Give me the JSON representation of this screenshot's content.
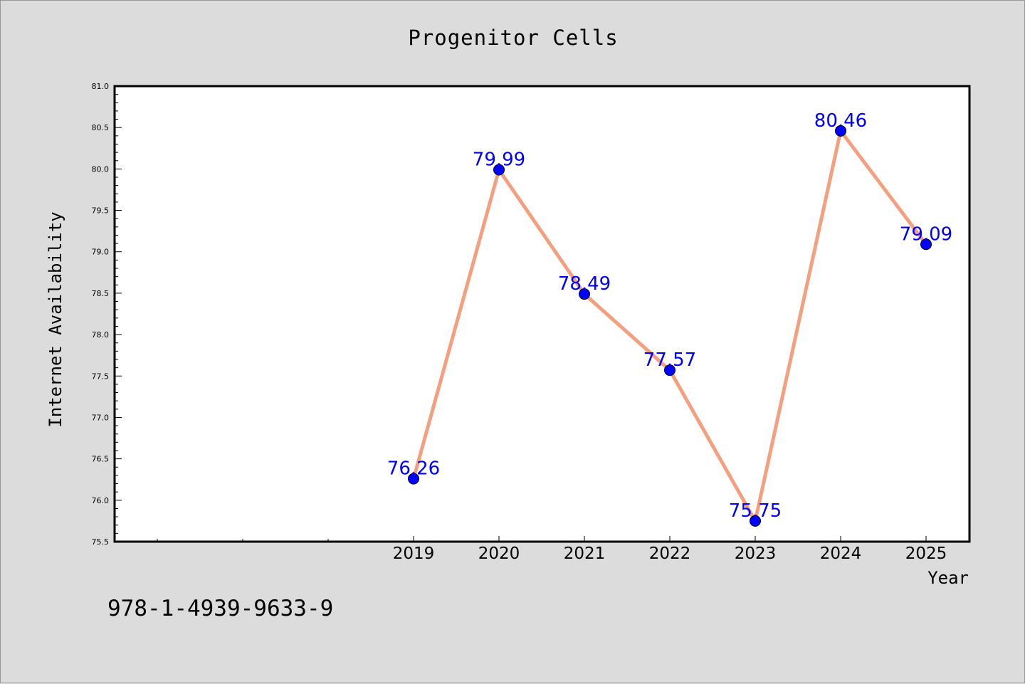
{
  "chart_data": {
    "type": "line",
    "title": "Progenitor Cells",
    "xlabel": "Year",
    "ylabel": "Internet Availability",
    "x": [
      "2019",
      "2020",
      "2021",
      "2022",
      "2023",
      "2024",
      "2025"
    ],
    "series": [
      {
        "values": [
          76.26,
          79.99,
          78.49,
          77.57,
          75.75,
          80.46,
          79.09
        ],
        "data_labels": [
          "76.26",
          "79.99",
          "78.49",
          "77.57",
          "75.75",
          "80.46",
          "79.09"
        ]
      }
    ],
    "ylim": [
      75.5,
      81.0
    ],
    "yticks": [
      "75.5",
      "76.0",
      "76.5",
      "77.0",
      "77.5",
      "78.0",
      "78.5",
      "79.0",
      "79.5",
      "80.0",
      "80.5",
      "81.0"
    ],
    "grid": false,
    "legend": "none",
    "colors": {
      "line": "#f4a080",
      "marker": "#0000ff",
      "marker_edge": "#000000",
      "data_label": "#0000ff",
      "background": "#dcdcdc",
      "plot_background": "#ffffff"
    }
  },
  "footer": {
    "isbn": "978-1-4939-9633-9"
  }
}
